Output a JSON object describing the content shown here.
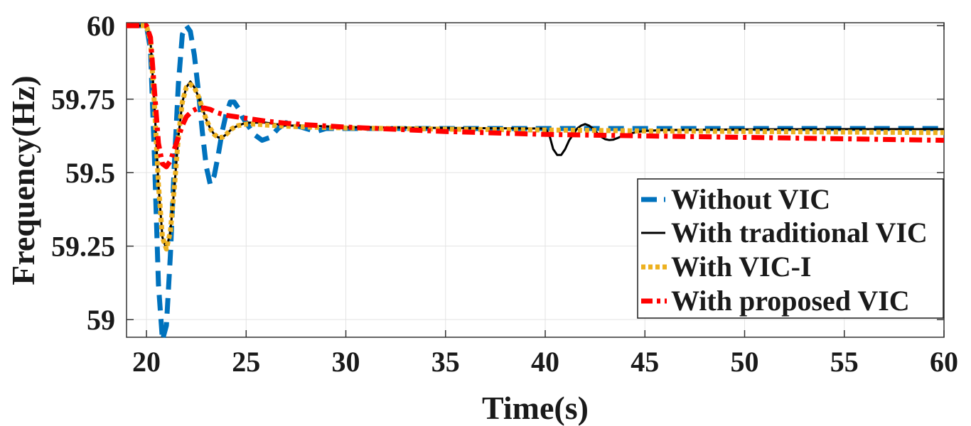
{
  "chart_data": {
    "type": "line",
    "title": "",
    "xlabel": "Time(s)",
    "ylabel": "Frequency(Hz)",
    "xlim": [
      19,
      60
    ],
    "ylim": [
      58.94,
      60.01
    ],
    "xticks": [
      20,
      25,
      30,
      35,
      40,
      45,
      50,
      55,
      60
    ],
    "yticks": [
      59,
      59.25,
      59.5,
      59.75,
      60
    ],
    "ytick_labels": [
      "59",
      "59.25",
      "59.5",
      "59.75",
      "60"
    ],
    "grid": true,
    "legend_position": "bottom-right",
    "series": [
      {
        "name": "Without VIC",
        "color": "#0072BD",
        "style": "dashed",
        "x": [
          19,
          20.0,
          20.2,
          20.4,
          20.6,
          20.8,
          21.0,
          21.2,
          21.4,
          21.6,
          21.8,
          22.0,
          22.2,
          22.4,
          22.6,
          22.8,
          23.0,
          23.2,
          23.4,
          23.6,
          23.8,
          24.0,
          24.2,
          24.4,
          24.6,
          24.8,
          25.0,
          25.4,
          25.8,
          26.2,
          26.6,
          27.0,
          27.5,
          28.0,
          28.5,
          29.0,
          30.0,
          35.0,
          40.0,
          45.0,
          50.0,
          55.0,
          60.0
        ],
        "y": [
          60.0,
          60.0,
          59.92,
          59.55,
          59.12,
          58.93,
          58.98,
          59.22,
          59.53,
          59.8,
          59.97,
          60.0,
          59.98,
          59.9,
          59.78,
          59.64,
          59.52,
          59.46,
          59.49,
          59.56,
          59.64,
          59.7,
          59.74,
          59.74,
          59.72,
          59.69,
          59.67,
          59.63,
          59.61,
          59.62,
          59.65,
          59.67,
          59.66,
          59.65,
          59.64,
          59.65,
          59.65,
          59.65,
          59.65,
          59.65,
          59.65,
          59.65,
          59.65
        ]
      },
      {
        "name": "With traditional VIC",
        "color": "#000000",
        "style": "solid",
        "x": [
          19,
          20.0,
          20.2,
          20.4,
          20.6,
          20.8,
          21.0,
          21.2,
          21.4,
          21.6,
          21.8,
          22.0,
          22.2,
          22.4,
          22.6,
          22.8,
          23.0,
          23.2,
          23.4,
          23.6,
          23.8,
          24.0,
          24.3,
          24.6,
          25.0,
          25.5,
          26.0,
          27.0,
          28.0,
          30.0,
          35.0,
          40.0,
          40.2,
          40.4,
          40.6,
          40.8,
          41.0,
          41.2,
          41.4,
          41.6,
          41.8,
          42.0,
          42.2,
          42.4,
          42.6,
          42.8,
          43.0,
          43.2,
          43.4,
          43.6,
          43.8,
          44.0,
          44.3,
          44.6,
          45.0,
          46.0,
          50.0,
          55.0,
          60.0
        ],
        "y": [
          60.0,
          60.0,
          59.95,
          59.73,
          59.46,
          59.28,
          59.24,
          59.3,
          59.45,
          59.62,
          59.74,
          59.79,
          59.81,
          59.79,
          59.76,
          59.72,
          59.68,
          59.65,
          59.63,
          59.62,
          59.62,
          59.63,
          59.65,
          59.66,
          59.67,
          59.67,
          59.67,
          59.66,
          59.66,
          59.655,
          59.652,
          59.65,
          59.63,
          59.58,
          59.56,
          59.56,
          59.58,
          59.61,
          59.63,
          59.65,
          59.66,
          59.665,
          59.66,
          59.65,
          59.635,
          59.622,
          59.614,
          59.611,
          59.612,
          59.617,
          59.623,
          59.628,
          59.634,
          59.638,
          59.642,
          59.645,
          59.647,
          59.648,
          59.648
        ]
      },
      {
        "name": "With VIC-I",
        "color": "#EDB120",
        "style": "dotted",
        "x": [
          19,
          20.0,
          20.2,
          20.4,
          20.6,
          20.8,
          21.0,
          21.2,
          21.4,
          21.6,
          21.8,
          22.0,
          22.2,
          22.4,
          22.6,
          22.8,
          23.0,
          23.2,
          23.4,
          23.6,
          23.8,
          24.0,
          24.3,
          24.6,
          25.0,
          25.5,
          26.0,
          27.0,
          28.0,
          30.0,
          35.0,
          40.0,
          45.0,
          50.0,
          55.0,
          60.0
        ],
        "y": [
          60.0,
          60.0,
          59.95,
          59.73,
          59.46,
          59.28,
          59.24,
          59.3,
          59.45,
          59.62,
          59.74,
          59.79,
          59.8,
          59.79,
          59.76,
          59.72,
          59.68,
          59.65,
          59.63,
          59.62,
          59.62,
          59.63,
          59.65,
          59.66,
          59.665,
          59.665,
          59.662,
          59.658,
          59.655,
          59.652,
          59.648,
          59.645,
          59.642,
          59.64,
          59.638,
          59.636
        ]
      },
      {
        "name": "With proposed VIC",
        "color": "#FF0000",
        "style": "dashdot",
        "x": [
          19,
          20.0,
          20.2,
          20.4,
          20.6,
          20.8,
          21.0,
          21.2,
          21.4,
          21.6,
          21.8,
          22.0,
          22.3,
          22.6,
          22.9,
          23.2,
          23.5,
          24.0,
          24.5,
          25.0,
          26.0,
          27.0,
          28.0,
          30.0,
          35.0,
          40.0,
          45.0,
          50.0,
          55.0,
          60.0
        ],
        "y": [
          60.0,
          60.0,
          59.96,
          59.78,
          59.6,
          59.53,
          59.52,
          59.54,
          59.58,
          59.62,
          59.66,
          59.69,
          59.71,
          59.72,
          59.72,
          59.715,
          59.705,
          59.695,
          59.69,
          59.685,
          59.675,
          59.668,
          59.663,
          59.655,
          59.64,
          59.63,
          59.625,
          59.62,
          59.615,
          59.61
        ]
      }
    ]
  }
}
